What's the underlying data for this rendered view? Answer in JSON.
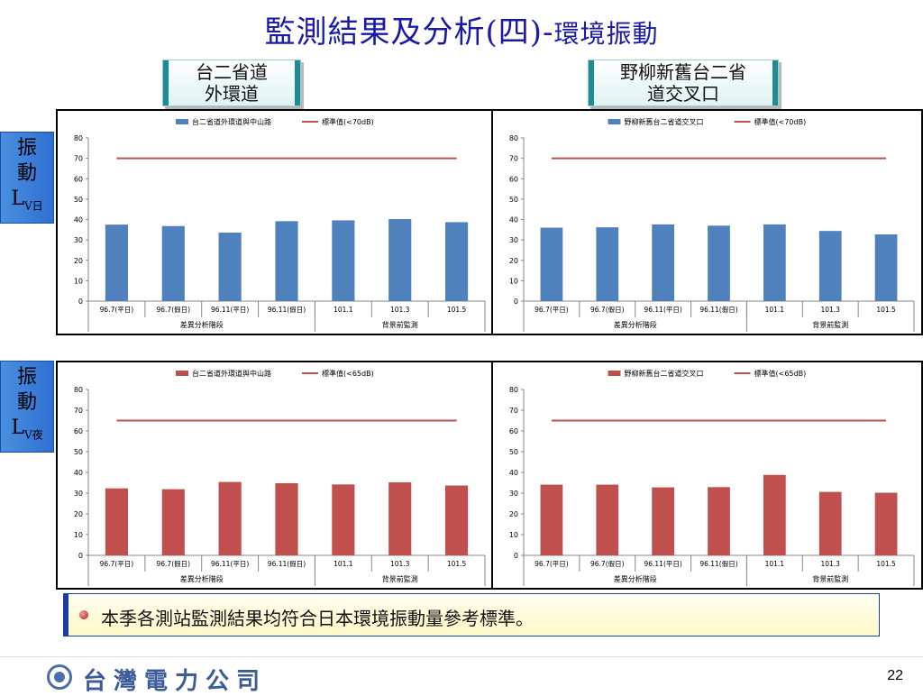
{
  "title": {
    "main": "監測結果及分析(四)",
    "dash": "-",
    "sub": "環境振動"
  },
  "site_labels": [
    "台二省道\n外環道",
    "野柳新舊台二省\n道交叉口"
  ],
  "row_labels": [
    {
      "main": "振\n動\nL",
      "sub": "V日"
    },
    {
      "main": "振\n動\nL",
      "sub": "V夜"
    }
  ],
  "colors": {
    "day_bar": "#4f81bd",
    "night_bar": "#c0504d",
    "standard_line": "#c0504d"
  },
  "chart_data": [
    {
      "type": "bar",
      "categories": [
        "96.7(平日)",
        "96.7(假日)",
        "96.11(平日)",
        "96.11(假日)",
        "101.1",
        "101.3",
        "101.5"
      ],
      "groups": [
        {
          "label": "差異分析階段",
          "span": 4
        },
        {
          "label": "背景前監測",
          "span": 3
        }
      ],
      "series": [
        {
          "name": "台二省道外環道與中山路",
          "kind": "bar",
          "color": "#4f81bd",
          "values": [
            37.5,
            36.8,
            33.6,
            39.2,
            39.6,
            40.2,
            38.7
          ]
        },
        {
          "name": "標準值(<70dB)",
          "kind": "line",
          "color": "#c0504d",
          "values": [
            70,
            70,
            70,
            70,
            70,
            70,
            70
          ]
        }
      ],
      "ylim": [
        0,
        80
      ],
      "yticks": [
        0,
        10,
        20,
        30,
        40,
        50,
        60,
        70,
        80
      ],
      "legend": "top"
    },
    {
      "type": "bar",
      "categories": [
        "96.7(平日)",
        "96.7(假日)",
        "96.11(平日)",
        "96.11(假日)",
        "101.1",
        "101.3",
        "101.5"
      ],
      "groups": [
        {
          "label": "差異分析階段",
          "span": 4
        },
        {
          "label": "背景前監測",
          "span": 3
        }
      ],
      "series": [
        {
          "name": "野柳新舊台二省道交叉口",
          "kind": "bar",
          "color": "#4f81bd",
          "values": [
            36.0,
            36.2,
            37.6,
            37.0,
            37.6,
            34.4,
            32.7
          ]
        },
        {
          "name": "標準值(<70dB)",
          "kind": "line",
          "color": "#c0504d",
          "values": [
            70,
            70,
            70,
            70,
            70,
            70,
            70
          ]
        }
      ],
      "ylim": [
        0,
        80
      ],
      "yticks": [
        0,
        10,
        20,
        30,
        40,
        50,
        60,
        70,
        80
      ],
      "legend": "top"
    },
    {
      "type": "bar",
      "categories": [
        "96.7(平日)",
        "96.7(假日)",
        "96.11(平日)",
        "96.11(假日)",
        "101.1",
        "101.3",
        "101.5"
      ],
      "groups": [
        {
          "label": "差異分析階段",
          "span": 4
        },
        {
          "label": "背景前監測",
          "span": 3
        }
      ],
      "series": [
        {
          "name": "台二省道外環道與中山路",
          "kind": "bar",
          "color": "#c0504d",
          "values": [
            32.3,
            31.9,
            35.4,
            34.8,
            34.2,
            35.2,
            33.7
          ]
        },
        {
          "name": "標準值(<65dB)",
          "kind": "line",
          "color": "#c0504d",
          "values": [
            65,
            65,
            65,
            65,
            65,
            65,
            65
          ]
        }
      ],
      "ylim": [
        0,
        80
      ],
      "yticks": [
        0,
        10,
        20,
        30,
        40,
        50,
        60,
        70,
        80
      ],
      "legend": "top"
    },
    {
      "type": "bar",
      "categories": [
        "96.7(平日)",
        "96.7(假日)",
        "96.11(平日)",
        "96.11(假日)",
        "101.1",
        "101.3",
        "101.5"
      ],
      "groups": [
        {
          "label": "差異分析階段",
          "span": 4
        },
        {
          "label": "背景前監測",
          "span": 3
        }
      ],
      "series": [
        {
          "name": "野柳新舊台二省道交叉口",
          "kind": "bar",
          "color": "#c0504d",
          "values": [
            34.1,
            34.1,
            32.8,
            32.9,
            38.8,
            30.6,
            30.2
          ]
        },
        {
          "name": "標準值(<65dB)",
          "kind": "line",
          "color": "#c0504d",
          "values": [
            65,
            65,
            65,
            65,
            65,
            65,
            65
          ]
        }
      ],
      "ylim": [
        0,
        80
      ],
      "yticks": [
        0,
        10,
        20,
        30,
        40,
        50,
        60,
        70,
        80
      ],
      "legend": "top"
    }
  ],
  "conclusion": "本季各測站監測結果均符合日本環境振動量參考標準。",
  "footer": {
    "company": "台灣電力公司",
    "page": "22"
  }
}
